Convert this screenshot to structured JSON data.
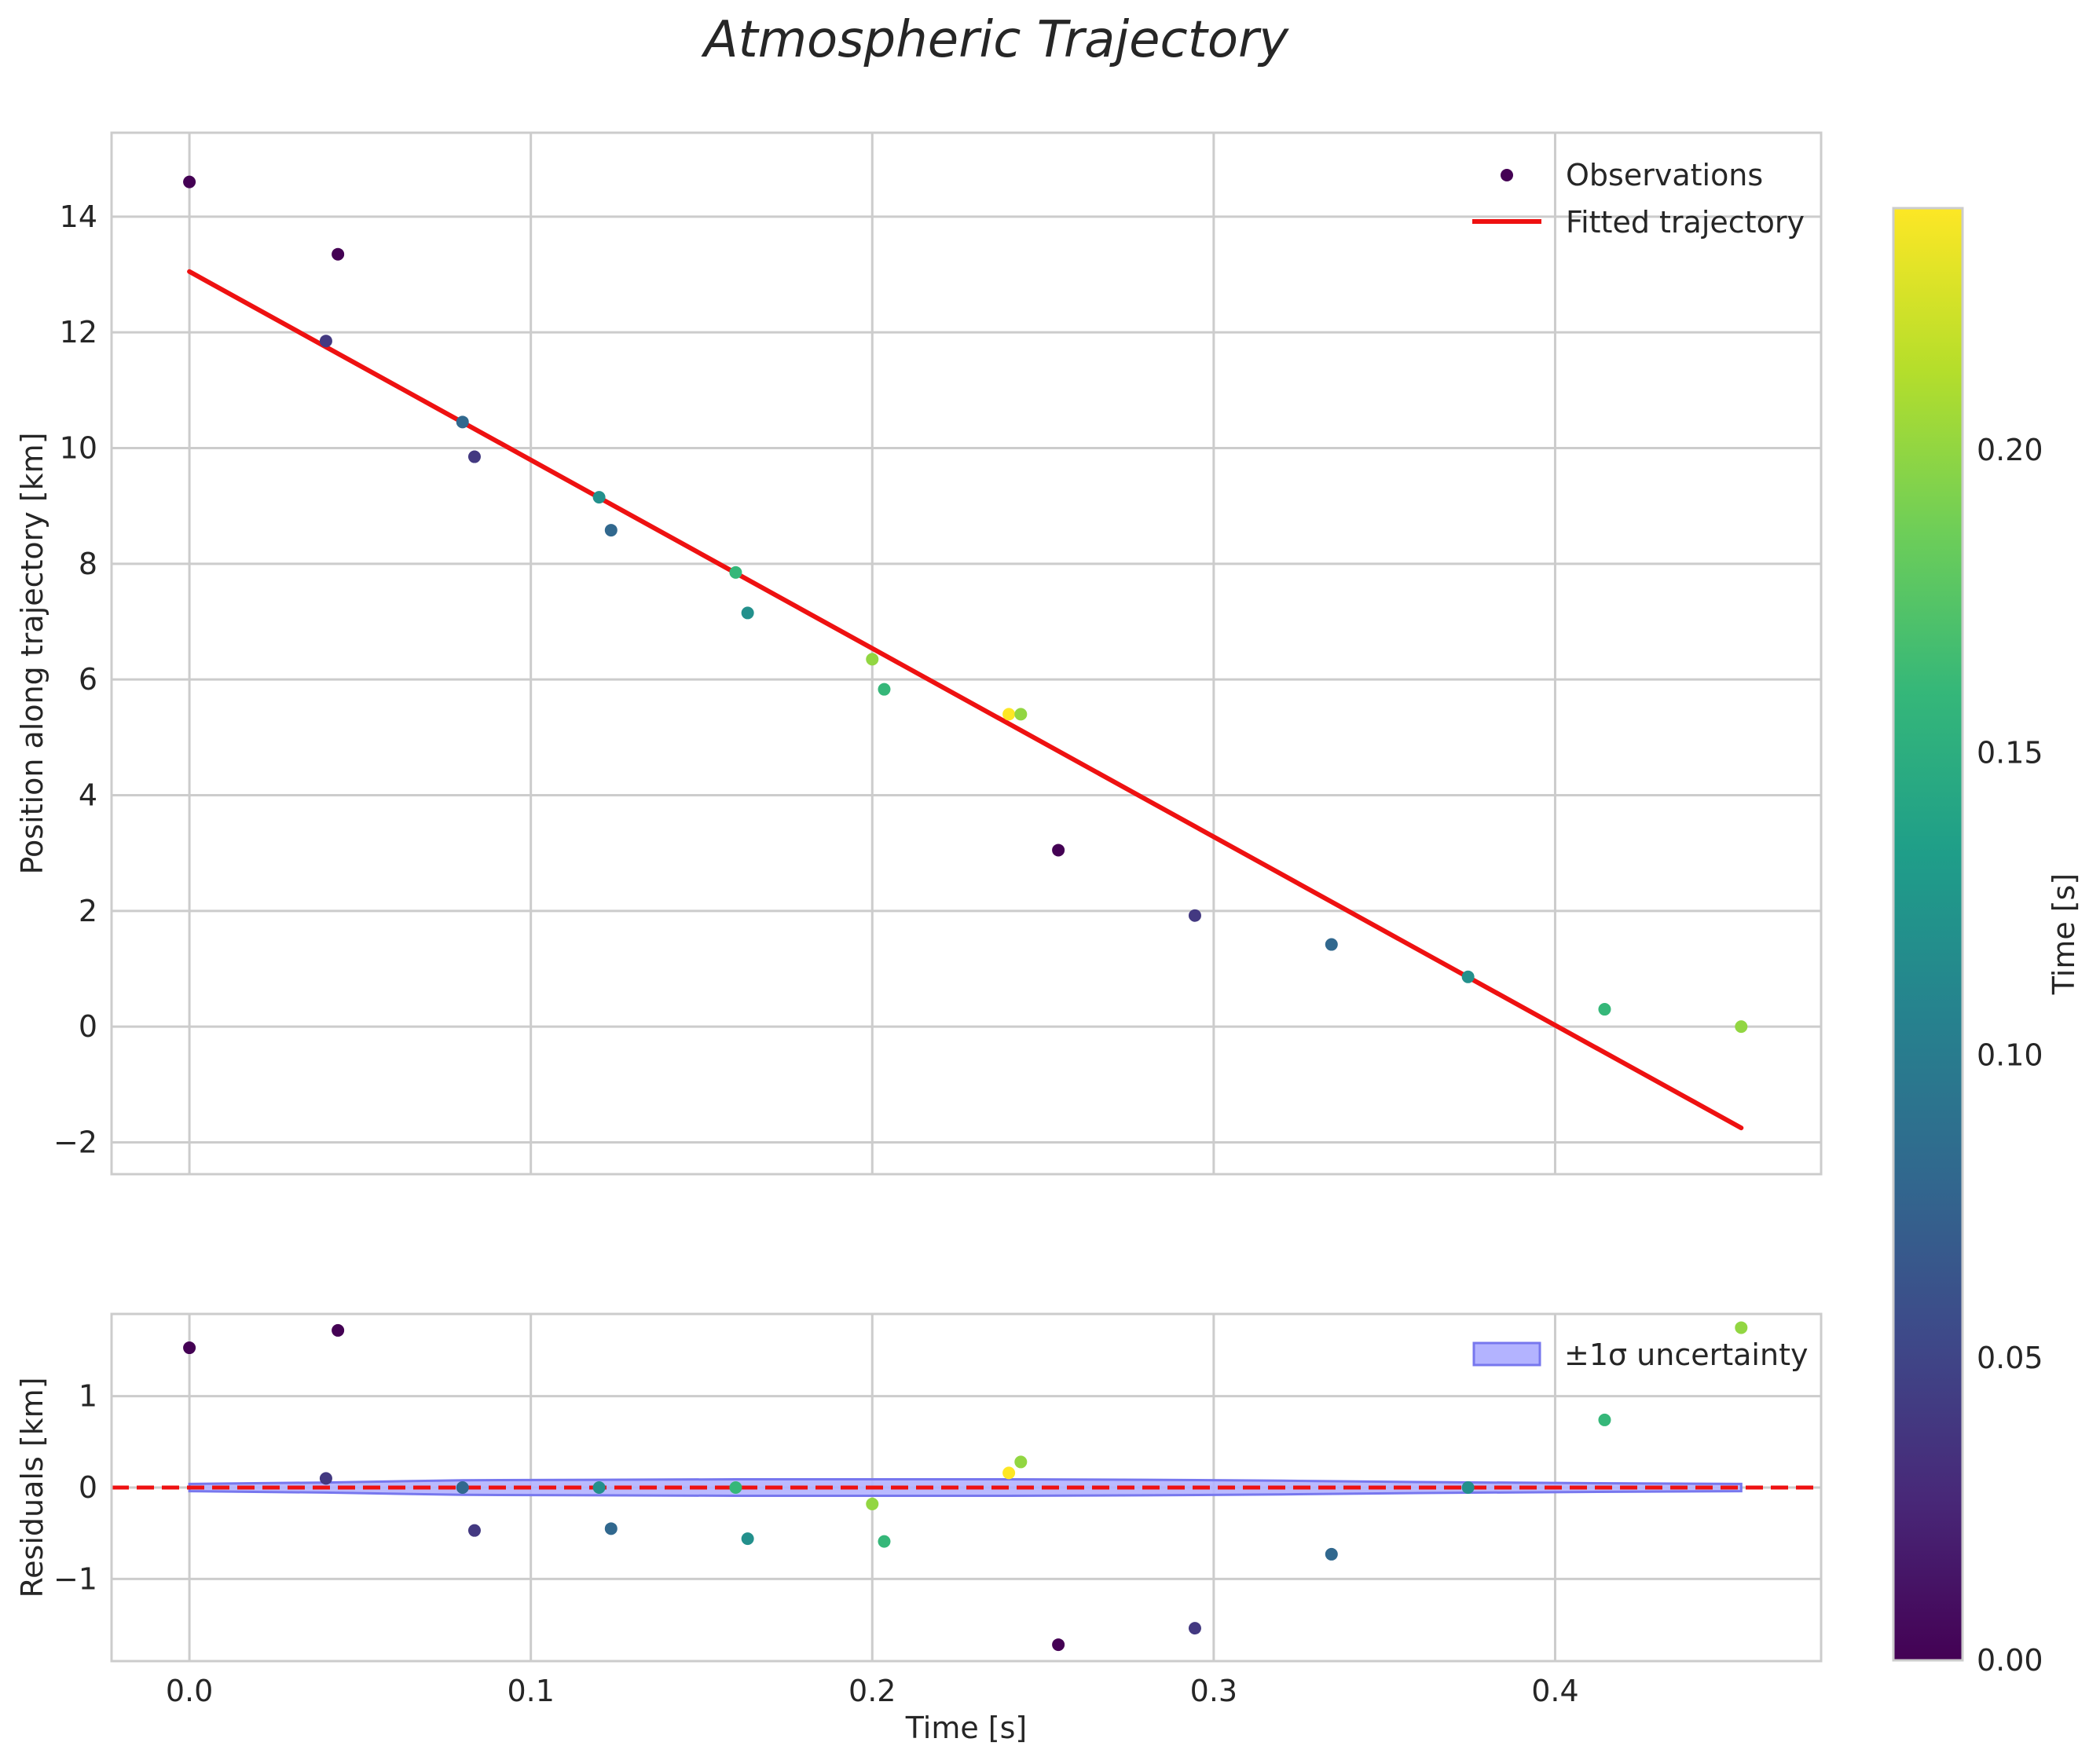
{
  "chart_data": [
    {
      "id": "trajectory",
      "type": "scatter",
      "title": "Atmospheric Trajectory",
      "xlabel": "",
      "ylabel": "Position along trajectory [km]",
      "xlim": [
        -0.0228,
        0.4779
      ],
      "ylim": [
        -2.55,
        15.45
      ],
      "xticks": [
        0.0,
        0.1,
        0.2,
        0.3,
        0.4
      ],
      "yticks": [
        -2,
        0,
        2,
        4,
        6,
        8,
        10,
        12,
        14
      ],
      "grid": true,
      "legend": {
        "location": "upper right",
        "entries": [
          "Observations",
          "Fitted trajectory"
        ]
      },
      "series": [
        {
          "name": "Observations",
          "kind": "scatter",
          "x": [
            0.0,
            0.04,
            0.0435,
            0.08,
            0.0835,
            0.12,
            0.1235,
            0.16,
            0.1635,
            0.2,
            0.2035,
            0.24,
            0.2435,
            0.2545,
            0.2945,
            0.3345,
            0.3745,
            0.4145,
            0.4545
          ],
          "y": [
            14.6,
            11.85,
            13.35,
            10.45,
            9.85,
            9.15,
            8.58,
            7.85,
            7.15,
            6.35,
            5.83,
            5.4,
            5.4,
            3.05,
            1.92,
            1.42,
            0.86,
            0.3,
            0.0
          ],
          "color_value": [
            0.0,
            0.04,
            0.0,
            0.08,
            0.04,
            0.12,
            0.08,
            0.16,
            0.12,
            0.2,
            0.16,
            0.24,
            0.2,
            0.0,
            0.04,
            0.08,
            0.12,
            0.16,
            0.2
          ]
        },
        {
          "name": "Fitted trajectory",
          "kind": "line",
          "color": "#ee1111",
          "x": [
            0.0,
            0.4545
          ],
          "y": [
            13.05,
            -1.75
          ]
        }
      ]
    },
    {
      "id": "residuals",
      "type": "scatter",
      "title": "",
      "xlabel": "Time [s]",
      "ylabel": "Residuals [km]",
      "xlim": [
        -0.0228,
        0.4779
      ],
      "ylim": [
        -1.9,
        1.9
      ],
      "xticks": [
        0.0,
        0.1,
        0.2,
        0.3,
        0.4
      ],
      "yticks": [
        -1,
        0,
        1
      ],
      "grid": true,
      "legend": {
        "location": "upper right",
        "entries": [
          "±1σ uncertainty"
        ]
      },
      "series": [
        {
          "name": "Residuals",
          "kind": "scatter",
          "x": [
            0.0,
            0.04,
            0.0435,
            0.08,
            0.0835,
            0.12,
            0.1235,
            0.16,
            0.1635,
            0.2,
            0.2035,
            0.24,
            0.2435,
            0.2545,
            0.2945,
            0.3345,
            0.3745,
            0.4145,
            0.4545
          ],
          "y": [
            1.53,
            0.1,
            1.72,
            0.0,
            -0.47,
            0.0,
            -0.45,
            0.0,
            -0.56,
            -0.18,
            -0.59,
            0.16,
            0.28,
            -1.72,
            -1.54,
            -0.73,
            0.0,
            0.74,
            1.75
          ],
          "color_value": [
            0.0,
            0.04,
            0.0,
            0.08,
            0.04,
            0.12,
            0.08,
            0.16,
            0.12,
            0.2,
            0.16,
            0.24,
            0.2,
            0.0,
            0.04,
            0.08,
            0.12,
            0.16,
            0.2
          ]
        },
        {
          "name": "±1σ uncertainty",
          "kind": "band",
          "color": "#7070ff",
          "x": [
            0.0,
            0.04,
            0.08,
            0.12,
            0.16,
            0.2,
            0.24,
            0.28,
            0.32,
            0.36,
            0.4,
            0.4545
          ],
          "upper": [
            0.04,
            0.055,
            0.08,
            0.085,
            0.09,
            0.09,
            0.09,
            0.085,
            0.075,
            0.06,
            0.05,
            0.04
          ],
          "lower": [
            -0.04,
            -0.055,
            -0.08,
            -0.085,
            -0.09,
            -0.09,
            -0.09,
            -0.085,
            -0.075,
            -0.06,
            -0.05,
            -0.04
          ]
        },
        {
          "name": "Zero line",
          "kind": "hline",
          "y": 0,
          "color": "#ee1111"
        }
      ]
    }
  ],
  "colorbar": {
    "label": "Time [s]",
    "range": [
      0.0,
      0.24
    ],
    "ticks": [
      0.0,
      0.05,
      0.1,
      0.15,
      0.2
    ],
    "tick_labels": [
      "0.00",
      "0.05",
      "0.10",
      "0.15",
      "0.20"
    ],
    "colormap": "viridis",
    "stops": [
      "#440154",
      "#482878",
      "#3e4989",
      "#31688e",
      "#26828e",
      "#1f9e89",
      "#35b779",
      "#6ece58",
      "#b5de2b",
      "#fde725"
    ]
  },
  "tick_labels": {
    "top_y": [
      "−2",
      "0",
      "2",
      "4",
      "6",
      "8",
      "10",
      "12",
      "14"
    ],
    "bottom_y": [
      "−1",
      "0",
      "1"
    ],
    "bottom_x": [
      "0.0",
      "0.1",
      "0.2",
      "0.3",
      "0.4"
    ]
  },
  "colors": {
    "fit_line": "#ee1111",
    "band_fill": "#b3b3ff",
    "band_edge": "#7777ee",
    "grid": "#cccccc",
    "axes_edge": "#cccccc",
    "text": "#262626"
  }
}
